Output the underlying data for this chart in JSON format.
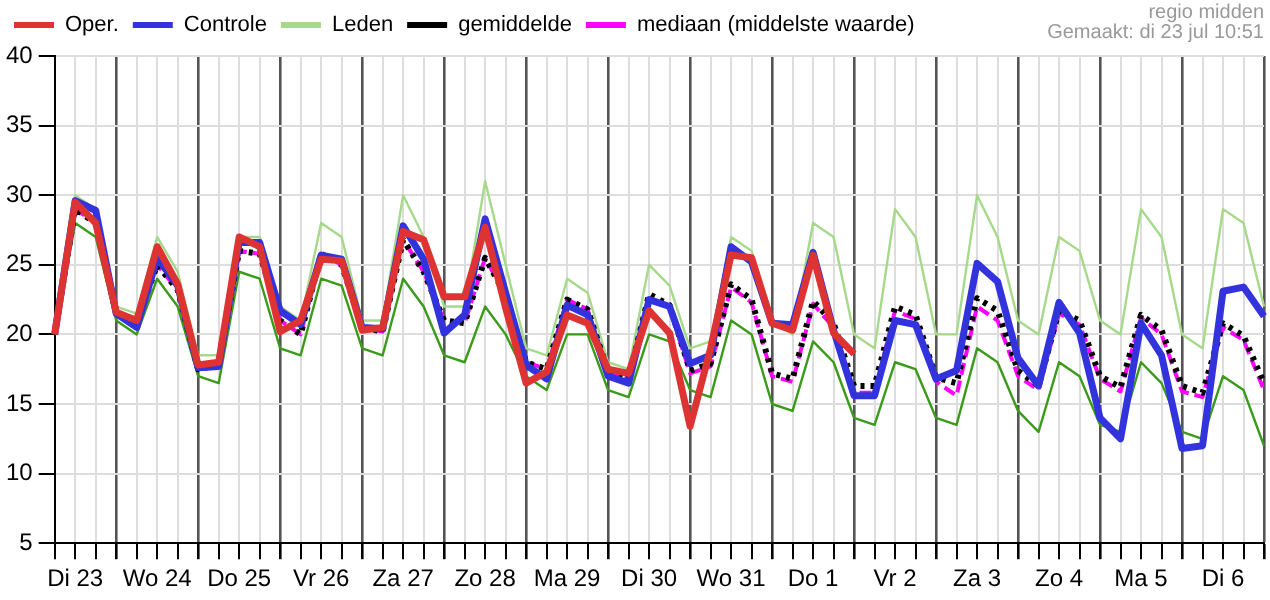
{
  "chart_data": {
    "type": "line",
    "categories": [
      null,
      "Di 23",
      null,
      null,
      null,
      "Wo 24",
      null,
      null,
      null,
      "Do 25",
      null,
      null,
      null,
      "Vr 26",
      null,
      null,
      null,
      "Za 27",
      null,
      null,
      null,
      "Zo 28",
      null,
      null,
      null,
      "Ma 29",
      null,
      null,
      null,
      "Di 30",
      null,
      null,
      null,
      "Wo 31",
      null,
      null,
      null,
      "Do 1",
      null,
      null,
      null,
      "Vr 2",
      null,
      null,
      null,
      "Za 3",
      null,
      null,
      null,
      "Zo 4",
      null,
      null,
      null,
      "Ma 5",
      null,
      null,
      null,
      "Di 6",
      null,
      null
    ],
    "series": [
      {
        "name": "Oper.",
        "color": "#dd3333",
        "values": [
          20,
          29.5,
          28,
          21.6,
          21,
          26.3,
          23.6,
          17.8,
          18,
          27,
          26.3,
          20.2,
          21,
          25.4,
          25.3,
          20.3,
          20.5,
          27.4,
          26.8,
          22.7,
          22.7,
          27.7,
          21.9,
          16.5,
          17.3,
          21.4,
          20.8,
          17.5,
          17.2,
          21.7,
          20.1,
          13.4,
          19,
          25.7,
          25.5,
          20.8,
          20.3,
          25.7,
          20.1,
          18.6,
          null,
          null,
          null,
          null,
          null,
          null,
          null,
          null,
          null,
          null,
          null,
          null,
          null,
          null,
          null,
          null,
          null,
          null,
          null,
          null
        ]
      },
      {
        "name": "Controle",
        "color": "#3333dd",
        "values": [
          20,
          29.6,
          28.9,
          21.5,
          20.5,
          25.5,
          23.5,
          17.6,
          17.7,
          26.6,
          26.6,
          21.7,
          20.7,
          25.7,
          25.4,
          20.5,
          20.4,
          27.8,
          25.4,
          20.1,
          21.4,
          28.3,
          23,
          17.8,
          16.8,
          22.1,
          21.4,
          17,
          16.5,
          22.5,
          22,
          17.9,
          18.5,
          26.3,
          25.2,
          20.8,
          20.7,
          25.9,
          20.3,
          15.6,
          15.6,
          21,
          20.7,
          16.8,
          17.4,
          25.1,
          23.8,
          18.3,
          16.3,
          22.3,
          20.1,
          14,
          12.5,
          20.8,
          18.5,
          11.8,
          12,
          23.1,
          23.4,
          21.3
        ]
      },
      {
        "name": "Leden",
        "color": "#a6d98a",
        "values": [
          20,
          30,
          29,
          22,
          21.5,
          27,
          24.5,
          18.5,
          18.5,
          27,
          27,
          22,
          21,
          28,
          27,
          21,
          21,
          30,
          27,
          22,
          22,
          31,
          25,
          19,
          18.5,
          24,
          23,
          18,
          17.5,
          25,
          23.5,
          19,
          19.5,
          27,
          26,
          21,
          20,
          28,
          27,
          20,
          19,
          29,
          27,
          20,
          20,
          30,
          27,
          21,
          20,
          27,
          26,
          21,
          20,
          29,
          27,
          20,
          19,
          29,
          28,
          22
        ]
      },
      {
        "name": "gemiddelde",
        "color": "#000000",
        "line_style": "dotted",
        "values": [
          20,
          29,
          28,
          21.5,
          20.8,
          25,
          23.2,
          17.5,
          17.8,
          26,
          25.8,
          21,
          20,
          25.8,
          25,
          20.5,
          20.2,
          26.8,
          24.5,
          21,
          20.8,
          25.5,
          22.8,
          18,
          17.5,
          22.5,
          21.8,
          17.3,
          16.8,
          22.9,
          22.1,
          17.4,
          17.9,
          23.6,
          22.5,
          17.2,
          16.8,
          22.4,
          20.8,
          16.3,
          16.3,
          22,
          21.4,
          16.9,
          16.5,
          22.6,
          21.7,
          17.4,
          16.3,
          21.7,
          21,
          17,
          16.2,
          21.4,
          20.3,
          16.3,
          15.8,
          20.8,
          19.9,
          16.5
        ]
      },
      {
        "name": "mediaan (middelste waarde)",
        "color": "#ff00ff",
        "line_style": "dashed",
        "values": [
          20,
          29,
          28,
          21.5,
          20.8,
          25,
          23.2,
          17.5,
          17.8,
          26,
          25.8,
          21,
          20,
          25.8,
          25,
          20.5,
          20.2,
          26.8,
          24.5,
          21,
          20.8,
          25.5,
          22.8,
          18,
          17.5,
          22.5,
          21.8,
          17.3,
          16.8,
          22.7,
          21.9,
          17.2,
          17.7,
          23.4,
          22.3,
          17,
          16.6,
          22.2,
          20.5,
          15.8,
          15.8,
          21.7,
          21.1,
          16.6,
          15.6,
          22,
          21,
          17,
          16,
          21.5,
          20.7,
          16.8,
          15.9,
          21.2,
          20,
          15.9,
          15.5,
          20.5,
          19.6,
          16
        ]
      },
      {
        "color": "#3a9a1a",
        "values": [
          20,
          28,
          27,
          21,
          20,
          24,
          22,
          17,
          16.5,
          24.5,
          24,
          19,
          18.5,
          24,
          23.5,
          19,
          18.5,
          24,
          22,
          18.5,
          18,
          22,
          20,
          17,
          16,
          20,
          20,
          16,
          15.5,
          20,
          19.5,
          16,
          15.5,
          21,
          20,
          15,
          14.5,
          19.5,
          18,
          14,
          13.5,
          18,
          17.5,
          14,
          13.5,
          19,
          18,
          14.5,
          13,
          18,
          17,
          13.5,
          13,
          18,
          16.5,
          13,
          12.5,
          17,
          16,
          12
        ]
      }
    ],
    "ylim": [
      5,
      40
    ],
    "yticks": [
      5,
      10,
      15,
      20,
      25,
      30,
      35,
      40
    ],
    "grid": true,
    "legend": "top",
    "marker": "none",
    "annotations": [
      "regio midden",
      "Gemaakt: di 23 jul 10:51"
    ]
  }
}
